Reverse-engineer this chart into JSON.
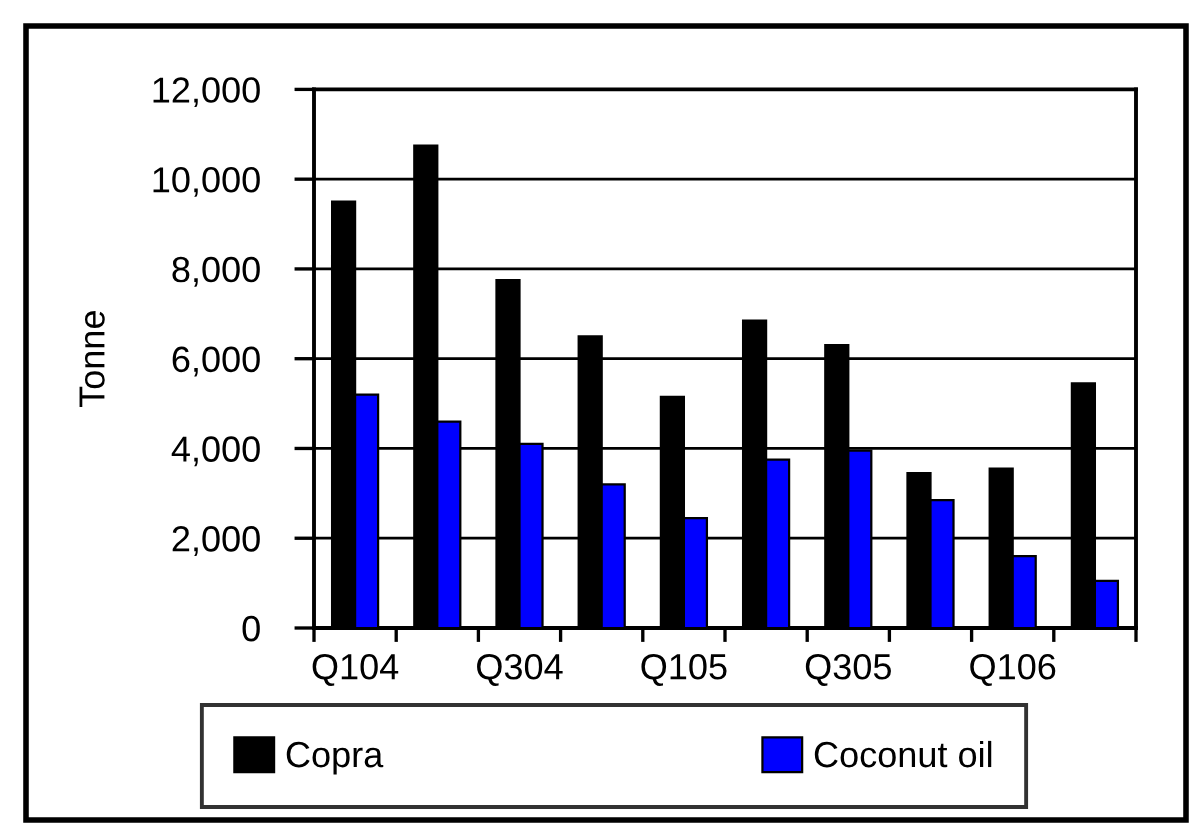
{
  "chart_data": {
    "type": "bar",
    "ylabel": "Tonne",
    "categories": [
      "Q104",
      null,
      "Q304",
      null,
      "Q105",
      null,
      "Q305",
      null,
      "Q106",
      null
    ],
    "series": [
      {
        "name": "Copra",
        "color": "#000000",
        "values": [
          9500,
          10750,
          7750,
          6500,
          5150,
          6850,
          6300,
          3450,
          3550,
          5450
        ]
      },
      {
        "name": "Coconut oil",
        "color": "#0000ff",
        "values": [
          5200,
          4600,
          4100,
          3200,
          2450,
          3750,
          3950,
          2850,
          1600,
          1050
        ]
      }
    ],
    "ylim": [
      0,
      12000
    ],
    "yticks": [
      0,
      {
        "value": 2000,
        "label": "2,000"
      },
      {
        "value": 4000,
        "label": "4,000"
      },
      {
        "value": 6000,
        "label": "6,000"
      },
      {
        "value": 8000,
        "label": "8,000"
      },
      {
        "value": 10000,
        "label": "10,000"
      },
      {
        "value": 12000,
        "label": "12,000"
      }
    ],
    "grid": "y",
    "legend": "bottom"
  }
}
